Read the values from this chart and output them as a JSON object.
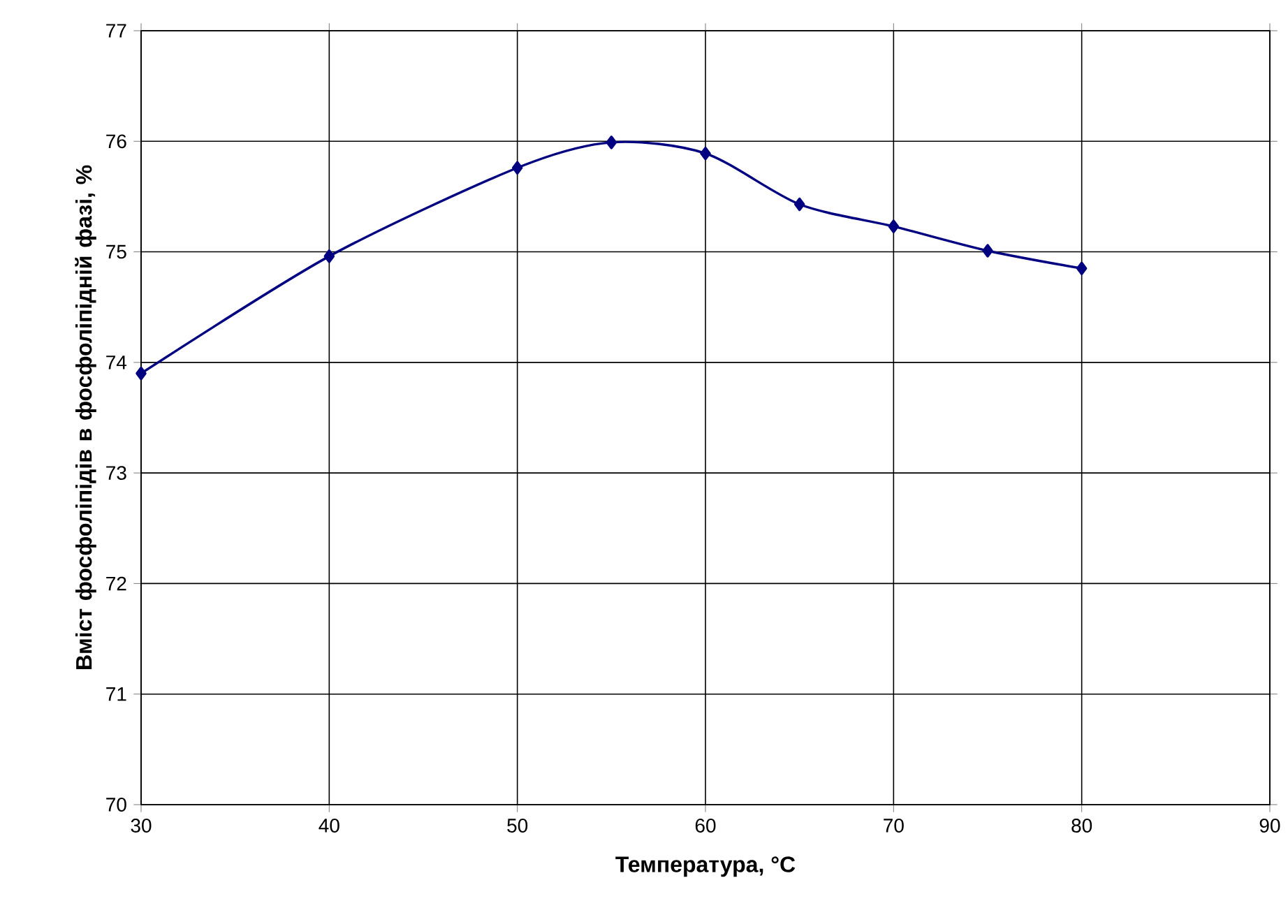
{
  "chart_data": {
    "type": "line",
    "xlabel": "Температура, °C",
    "ylabel": "Вміст фосфоліпідів в фосфоліпідній фазі, %",
    "x": [
      30,
      40,
      50,
      55,
      60,
      65,
      70,
      75,
      80
    ],
    "series": [
      {
        "color": "#000080",
        "values": [
          73.9,
          74.96,
          75.76,
          75.99,
          75.89,
          75.43,
          75.23,
          75.01,
          74.85
        ]
      }
    ],
    "xlim": [
      30,
      90
    ],
    "xticks": [
      30,
      40,
      50,
      60,
      70,
      80,
      90
    ],
    "ylim": [
      70,
      77
    ],
    "yticks": [
      70,
      71,
      72,
      73,
      74,
      75,
      76,
      77
    ],
    "grid": true,
    "marker": "diamond",
    "line_style": "solid"
  }
}
